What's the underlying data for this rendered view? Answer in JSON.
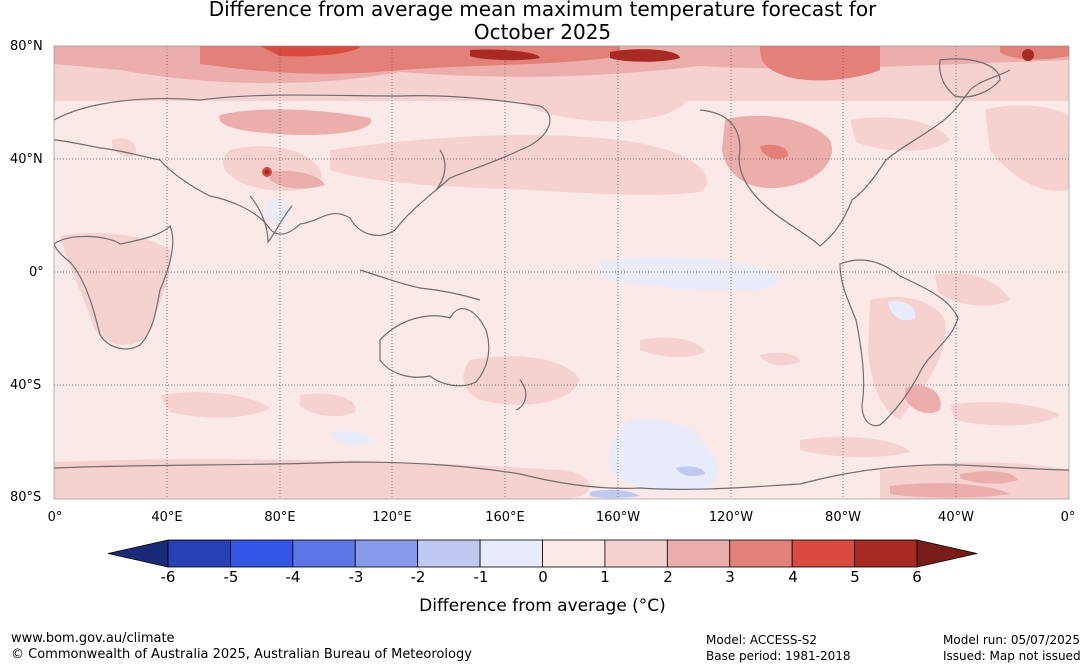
{
  "title": {
    "line1": "Difference from average mean maximum temperature forecast for",
    "line2": "October 2025"
  },
  "lat_labels": [
    "80°N",
    "40°N",
    "0°",
    "40°S",
    "80°S"
  ],
  "lon_labels": [
    "0°",
    "40°E",
    "80°E",
    "120°E",
    "160°E",
    "160°W",
    "120°W",
    "80°W",
    "40°W",
    "0°"
  ],
  "colorbar": {
    "ticks": [
      "-6",
      "-5",
      "-4",
      "-3",
      "-2",
      "-1",
      "0",
      "1",
      "2",
      "3",
      "4",
      "5",
      "6"
    ],
    "colors": [
      "#1b2a78",
      "#2640b5",
      "#3355e6",
      "#5c76e6",
      "#8799ea",
      "#c0c9f2",
      "#e8ecfa",
      "#fbe9e8",
      "#f5d2d0",
      "#ecaeab",
      "#e38078",
      "#d94a3f",
      "#a82a22",
      "#7a1c17"
    ],
    "title": "Difference from average (°C)"
  },
  "footer": {
    "website": "www.bom.gov.au/climate",
    "copyright": "© Commonwealth of Australia 2025, Australian Bureau of Meteorology",
    "model": "Model: ACCESS-S2",
    "base_period": "Base period: 1981-2018",
    "model_run": "Model run: 05/07/2025",
    "issued": "Issued: Map not issued"
  }
}
